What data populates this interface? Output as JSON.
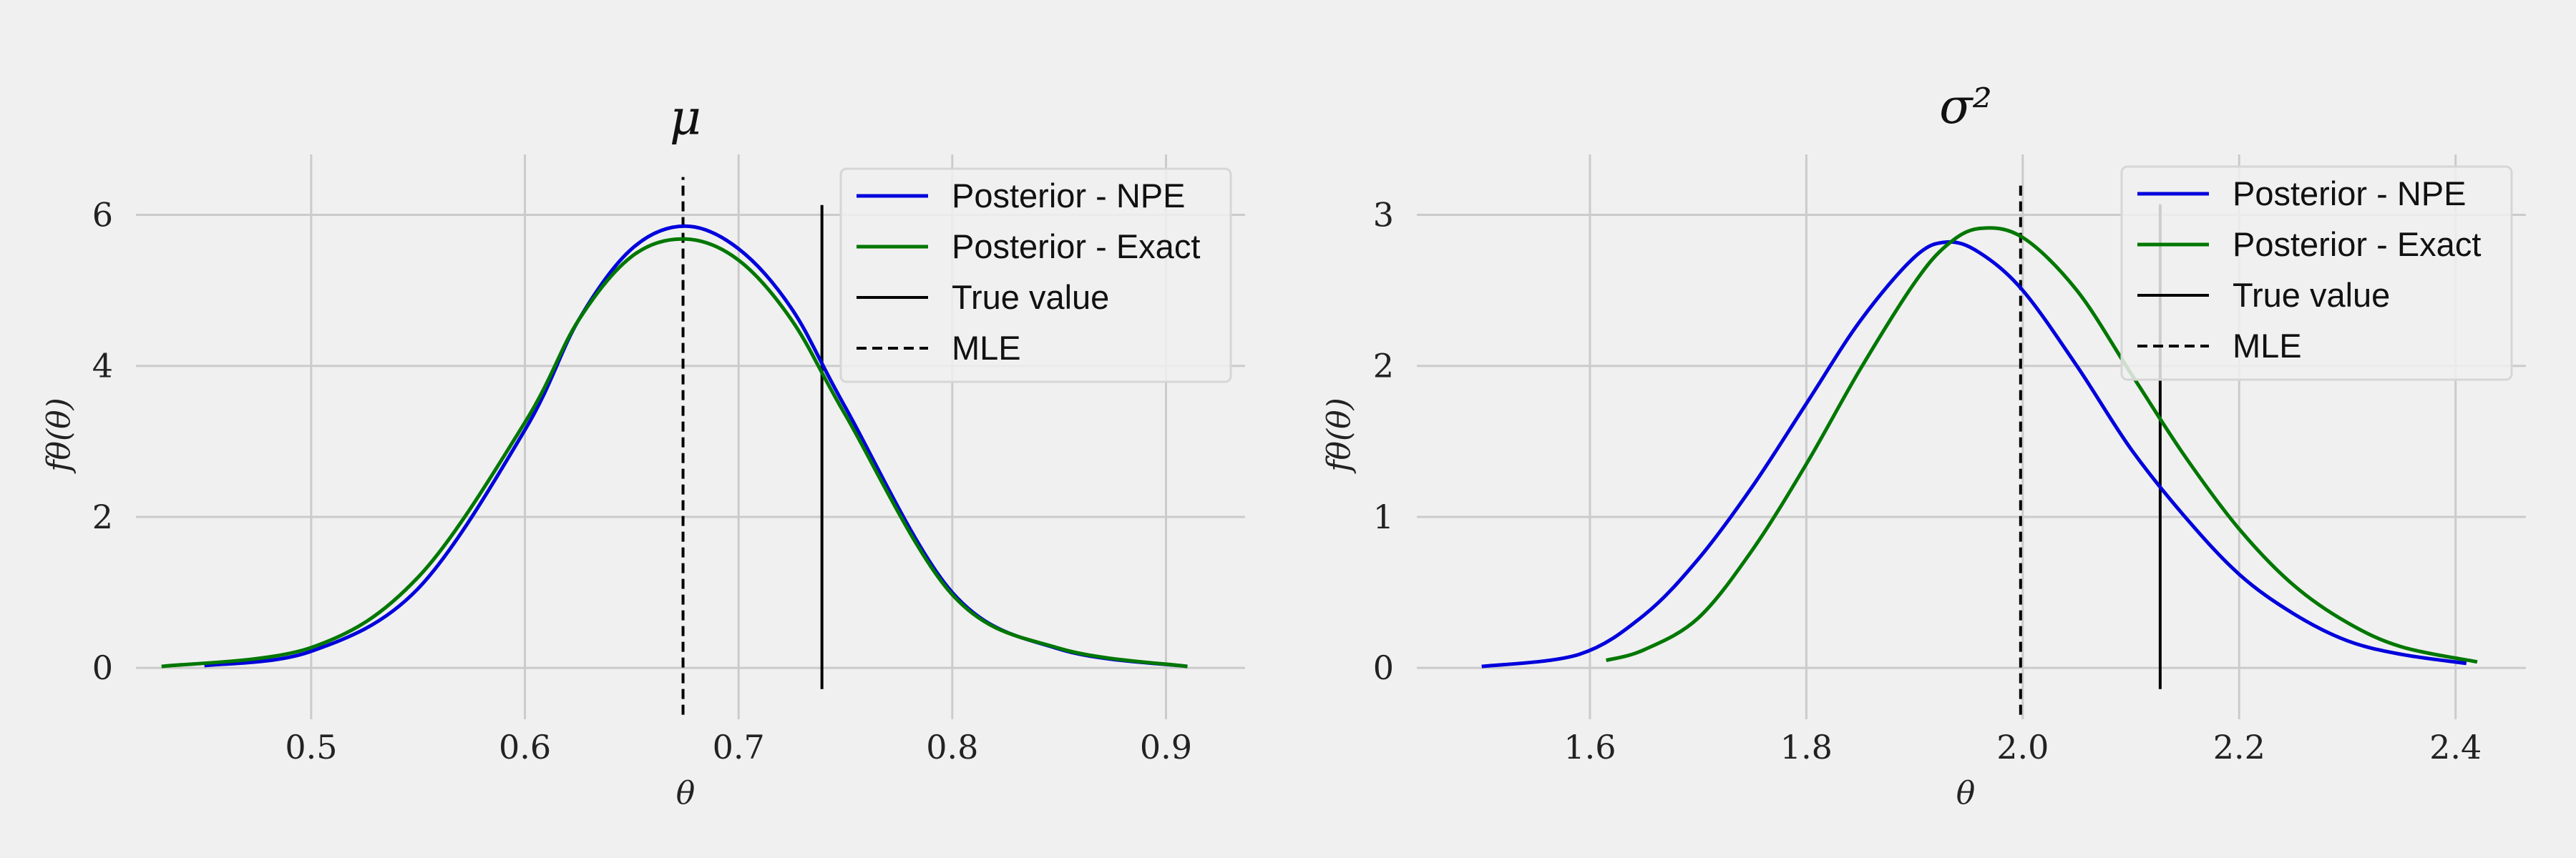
{
  "chart_data": [
    {
      "type": "line",
      "title": "μ",
      "xlabel": "θ",
      "ylabel": "fθ(θ)",
      "xlim": [
        0.418,
        0.937
      ],
      "ylim": [
        -0.68,
        6.8
      ],
      "xticks": [
        0.5,
        0.6,
        0.7,
        0.8,
        0.9
      ],
      "xtick_labels": [
        "0.5",
        "0.6",
        "0.7",
        "0.8",
        "0.9"
      ],
      "yticks": [
        0,
        2,
        4,
        6
      ],
      "ytick_labels": [
        "0",
        "2",
        "4",
        "6"
      ],
      "grid": true,
      "legend_position": "top-right",
      "series": [
        {
          "name": "Posterior - NPE",
          "color": "#0000dd",
          "x": [
            0.45,
            0.5,
            0.55,
            0.6,
            0.625,
            0.65,
            0.675,
            0.7,
            0.725,
            0.75,
            0.8,
            0.85,
            0.91
          ],
          "y": [
            0.03,
            0.22,
            1.05,
            3.15,
            4.6,
            5.55,
            5.85,
            5.55,
            4.75,
            3.45,
            1.0,
            0.25,
            0.02
          ]
        },
        {
          "name": "Posterior - Exact",
          "color": "#007700",
          "x": [
            0.43,
            0.5,
            0.55,
            0.6,
            0.625,
            0.65,
            0.675,
            0.7,
            0.725,
            0.75,
            0.8,
            0.85,
            0.91
          ],
          "y": [
            0.02,
            0.27,
            1.2,
            3.25,
            4.6,
            5.45,
            5.68,
            5.4,
            4.6,
            3.35,
            0.97,
            0.26,
            0.02
          ]
        }
      ],
      "vlines": [
        {
          "name": "True value",
          "x": 0.739,
          "style": "solid",
          "color": "#000000",
          "ymin": -0.28,
          "ymax": 6.13
        },
        {
          "name": "MLE",
          "x": 0.674,
          "style": "dashed",
          "color": "#000000",
          "ymin": -0.62,
          "ymax": 6.5
        }
      ]
    },
    {
      "type": "line",
      "title": "σ²",
      "xlabel": "θ",
      "ylabel": "fθ(θ)",
      "xlim": [
        1.44,
        2.465
      ],
      "ylim": [
        -0.34,
        3.4
      ],
      "xticks": [
        1.6,
        1.8,
        2.0,
        2.2,
        2.4
      ],
      "xtick_labels": [
        "1.6",
        "1.8",
        "2.0",
        "2.2",
        "2.4"
      ],
      "yticks": [
        0,
        1,
        2,
        3
      ],
      "ytick_labels": [
        "0",
        "1",
        "2",
        "3"
      ],
      "grid": true,
      "legend_position": "top-right",
      "series": [
        {
          "name": "Posterior - NPE",
          "color": "#0000dd",
          "x": [
            1.5,
            1.59,
            1.65,
            1.7,
            1.75,
            1.8,
            1.85,
            1.9,
            1.93,
            1.96,
            2.0,
            2.05,
            2.1,
            2.15,
            2.2,
            2.25,
            2.3,
            2.35,
            2.41
          ],
          "y": [
            0.01,
            0.09,
            0.35,
            0.72,
            1.2,
            1.75,
            2.3,
            2.72,
            2.82,
            2.75,
            2.5,
            2.0,
            1.45,
            1.0,
            0.62,
            0.36,
            0.18,
            0.09,
            0.03
          ]
        },
        {
          "name": "Posterior - Exact",
          "color": "#007700",
          "x": [
            1.615,
            1.65,
            1.7,
            1.75,
            1.8,
            1.85,
            1.9,
            1.93,
            1.96,
            2.0,
            2.05,
            2.1,
            2.15,
            2.2,
            2.25,
            2.3,
            2.35,
            2.42
          ],
          "y": [
            0.05,
            0.12,
            0.33,
            0.78,
            1.35,
            1.98,
            2.55,
            2.8,
            2.91,
            2.85,
            2.5,
            1.95,
            1.4,
            0.92,
            0.55,
            0.3,
            0.14,
            0.04
          ]
        }
      ],
      "vlines": [
        {
          "name": "True value",
          "x": 2.127,
          "style": "solid",
          "color": "#000000",
          "ymin": -0.14,
          "ymax": 3.07
        },
        {
          "name": "MLE",
          "x": 1.998,
          "style": "dashed",
          "color": "#000000",
          "ymin": -0.31,
          "ymax": 3.2
        }
      ]
    }
  ]
}
